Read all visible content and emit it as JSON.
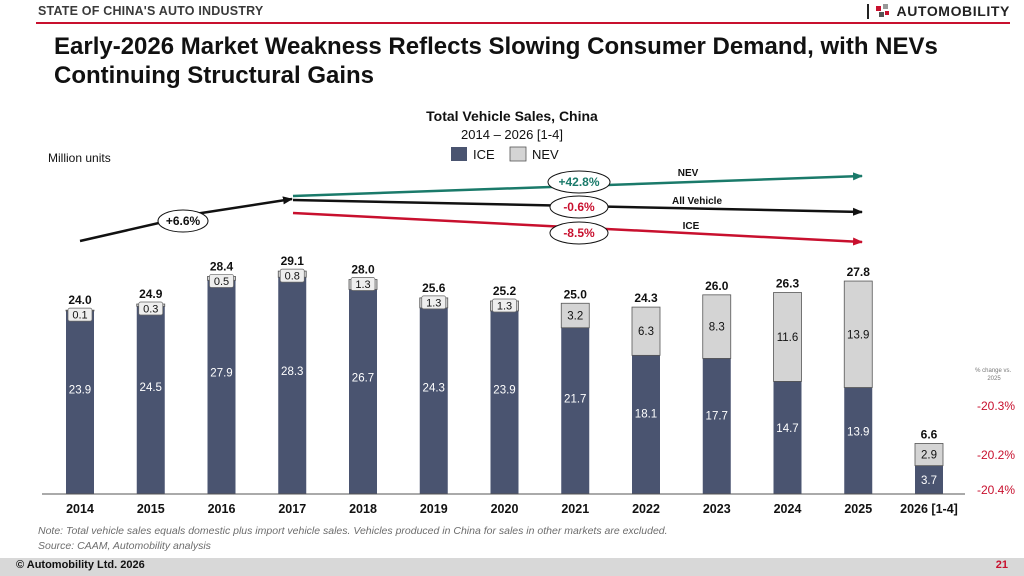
{
  "header": {
    "section": "STATE OF CHINA'S AUTO INDUSTRY",
    "brand": "AUTOMOBILITY"
  },
  "headline": "Early-2026 Market Weakness Reflects Slowing Consumer Demand, with NEVs Continuing Structural Gains",
  "chart_data": {
    "type": "bar",
    "stacked": true,
    "title": "Total Vehicle Sales, China",
    "subtitle": "2014 – 2026 [1-4]",
    "unit": "Million units",
    "legend": [
      "ICE",
      "NEV"
    ],
    "legend_position": "top-center",
    "categories": [
      "2014",
      "2015",
      "2016",
      "2017",
      "2018",
      "2019",
      "2020",
      "2021",
      "2022",
      "2023",
      "2024",
      "2025",
      "2026 [1-4]"
    ],
    "series": [
      {
        "name": "ICE",
        "color": "#4a5470",
        "values": [
          23.9,
          24.5,
          27.9,
          28.3,
          26.7,
          24.3,
          23.9,
          21.7,
          18.1,
          17.7,
          14.7,
          13.9,
          3.7
        ]
      },
      {
        "name": "NEV",
        "color": "#d4d4d4",
        "values": [
          0.1,
          0.3,
          0.5,
          0.8,
          1.3,
          1.3,
          1.3,
          3.2,
          6.3,
          8.3,
          11.6,
          13.9,
          2.9
        ]
      }
    ],
    "value_labels": {
      "ice": [
        "23.9",
        "24.5",
        "27.9",
        "28.3",
        "26.7",
        "24.3",
        "23.9",
        "21.7",
        "18.1",
        "17.7",
        "14.7",
        "13.9",
        "3.7"
      ],
      "nev": [
        "0.1",
        "0.3",
        "0.5",
        "0.8",
        "1.3",
        "1.3",
        "1.3",
        "3.2",
        "6.3",
        "8.3",
        "11.6",
        "13.9",
        "2.9"
      ]
    },
    "totals": [
      "24.0",
      "24.9",
      "28.4",
      "29.1",
      "28.0",
      "25.6",
      "25.2",
      "25.0",
      "24.3",
      "26.0",
      "26.3",
      "27.8",
      "6.6"
    ],
    "ylim": [
      0,
      32
    ],
    "grid": false,
    "cagr_2014_2017": "+6.6%",
    "cagr_2017_2025": [
      {
        "name": "NEV",
        "value": "+42.8%",
        "color": "#1a7a6a"
      },
      {
        "name": "All Vehicle",
        "value": "-0.6%",
        "color": "#111111"
      },
      {
        "name": "ICE",
        "value": "-8.5%",
        "color": "#c8102e"
      }
    ],
    "change_vs_2025": {
      "label": "% change vs. 2025",
      "values": [
        "-20.3%",
        "-20.2%",
        "-20.4%"
      ],
      "color": "#c8102e"
    }
  },
  "footer": {
    "note": "Note: Total vehicle sales equals domestic plus import vehicle sales. Vehicles produced in China for sales in other markets are excluded.",
    "source": "Source: CAAM, Automobility analysis",
    "copyright": "© Automobility Ltd. 2026",
    "page": "21"
  }
}
